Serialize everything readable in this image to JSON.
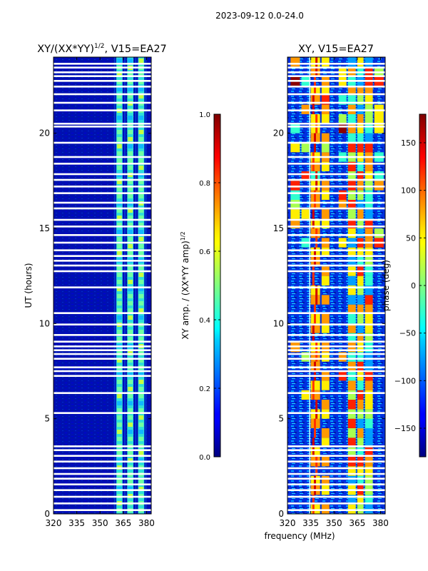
{
  "suptitle": "2023-09-12 0.0-24.0",
  "chart_data": [
    {
      "type": "heatmap",
      "title": "XY/(XX*YY)^1/2, V15=EA27",
      "title_main": "XY/(XX*YY)",
      "title_sup": "1/2",
      "title_tail": ", V15=EA27",
      "xlabel": "",
      "ylabel": "UT (hours)",
      "xlim": [
        320,
        383
      ],
      "ylim": [
        0,
        24
      ],
      "xticks": [
        320,
        335,
        350,
        365,
        380
      ],
      "yticks": [
        0,
        5,
        10,
        15,
        20
      ],
      "bright_bands": [
        {
          "x0": 360.5,
          "x1": 364.5
        },
        {
          "x0": 367.5,
          "x1": 371.5
        },
        {
          "x0": 374.5,
          "x1": 378.5
        }
      ],
      "colorbar": {
        "label": "XY amp. / (XX*YY amp)^1/2",
        "label_main": "XY amp. / (XX*YY amp)",
        "label_sup": "1/2",
        "range": [
          0.0,
          1.0
        ],
        "ticks": [
          "0.0",
          "0.2",
          "0.4",
          "0.6",
          "0.8",
          "1.0"
        ],
        "tick_values": [
          0.0,
          0.2,
          0.4,
          0.6,
          0.8,
          1.0
        ]
      }
    },
    {
      "type": "heatmap",
      "title": "XY, V15=EA27",
      "xlabel": "frequency (MHz)",
      "ylabel": "",
      "xlim": [
        320,
        383
      ],
      "ylim": [
        0,
        24
      ],
      "xticks": [
        320,
        335,
        350,
        365,
        380
      ],
      "yticks": [
        0,
        5,
        10,
        15,
        20
      ],
      "colorbar": {
        "label": "phase (deg)",
        "range": [
          -180,
          180
        ],
        "ticks": [
          "150",
          "100",
          "50",
          "0",
          "−50",
          "−100",
          "−150"
        ],
        "tick_values": [
          150,
          100,
          50,
          0,
          -50,
          -100,
          -150
        ]
      }
    }
  ],
  "flagged_rows_hours": [
    0.2,
    0.55,
    0.9,
    1.25,
    1.55,
    1.85,
    2.1,
    2.4,
    2.75,
    3.05,
    3.35,
    3.55,
    5.3,
    6.35,
    7.25,
    7.5,
    7.7,
    8.15,
    8.4,
    8.6,
    8.8,
    9.05,
    9.4,
    9.95,
    10.55,
    11.9,
    12.75,
    13.05,
    13.3,
    13.55,
    13.85,
    14.25,
    14.65,
    15.1,
    15.45,
    16.05,
    16.35,
    16.85,
    17.2,
    17.55,
    17.85,
    18.4,
    18.75,
    19.5,
    20.35,
    20.5,
    21.2,
    21.6,
    22.05,
    22.45,
    22.75,
    23.0,
    23.2,
    23.45,
    23.65
  ]
}
